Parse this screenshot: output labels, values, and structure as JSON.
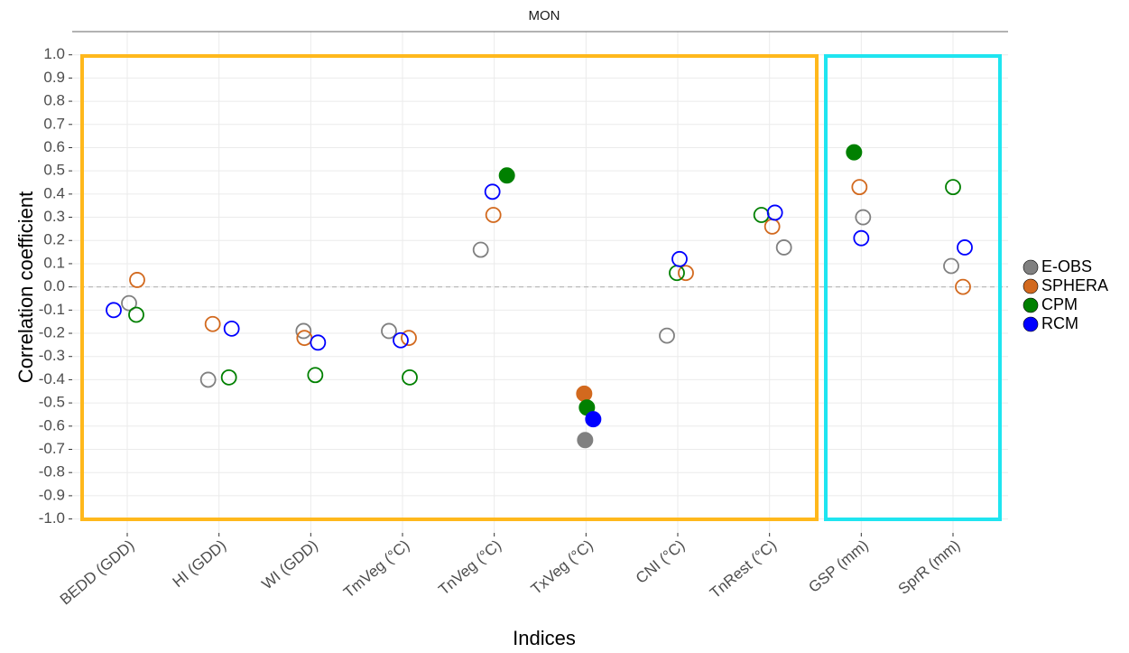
{
  "chart_data": {
    "type": "scatter",
    "title": "MON",
    "x_label": "Indices",
    "y_label": "Correlation coefficient",
    "categories": [
      "BEDD (GDD)",
      "HI (GDD)",
      "WI (GDD)",
      "TmVeg (°C)",
      "TnVeg (°C)",
      "TxVeg (°C)",
      "CNI (°C)",
      "TnRest (°C)",
      "GSP (mm)",
      "SprR (mm)"
    ],
    "series": [
      {
        "name": "E-OBS",
        "color": "#808080",
        "values": [
          -0.07,
          -0.4,
          -0.19,
          -0.19,
          0.16,
          -0.66,
          -0.21,
          0.17,
          0.3,
          0.09
        ],
        "filled": [
          false,
          false,
          false,
          false,
          false,
          true,
          false,
          false,
          false,
          false
        ]
      },
      {
        "name": "SPHERA",
        "color": "#d2691e",
        "values": [
          0.03,
          -0.16,
          -0.22,
          -0.22,
          0.31,
          -0.46,
          0.06,
          0.26,
          0.43,
          0.0
        ],
        "filled": [
          false,
          false,
          false,
          false,
          false,
          true,
          false,
          false,
          false,
          false
        ]
      },
      {
        "name": "CPM",
        "color": "#008000",
        "values": [
          -0.12,
          -0.39,
          -0.38,
          -0.39,
          0.48,
          -0.52,
          0.06,
          0.31,
          0.58,
          0.43
        ],
        "filled": [
          false,
          false,
          false,
          false,
          true,
          true,
          false,
          false,
          true,
          false
        ]
      },
      {
        "name": "RCM",
        "color": "#0000ff",
        "values": [
          -0.1,
          -0.18,
          -0.24,
          -0.23,
          0.41,
          -0.57,
          0.12,
          0.32,
          0.21,
          0.17
        ],
        "filled": [
          false,
          false,
          false,
          false,
          false,
          true,
          false,
          false,
          false,
          false
        ]
      }
    ],
    "ylim": [
      -1.06,
      1.1
    ],
    "yticks": [
      {
        "value": -1,
        "label": "-1.0"
      },
      -0.9,
      -0.8,
      -0.7,
      -0.6,
      -0.5,
      -0.4,
      -0.3,
      -0.2,
      -0.1,
      {
        "value": 0,
        "label": "0.0"
      },
      0.1,
      0.2,
      0.3,
      0.4,
      0.5,
      0.6,
      0.7,
      0.8,
      0.9,
      {
        "value": 1,
        "label": "1.0"
      }
    ],
    "hline": 0,
    "grid": true,
    "legend": "right"
  }
}
